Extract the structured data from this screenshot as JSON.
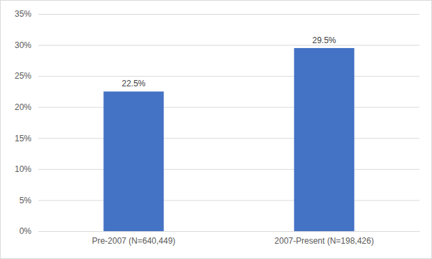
{
  "chart_data": {
    "type": "bar",
    "categories": [
      "Pre-2007 (N=640,449)",
      "2007-Present (N=198,426)"
    ],
    "values": [
      22.5,
      29.5
    ],
    "value_labels": [
      "22.5%",
      "29.5%"
    ],
    "color": "#4472c4",
    "ylim": [
      0,
      35
    ],
    "yticks": [
      {
        "value": 0,
        "label": "0%"
      },
      {
        "value": 5,
        "label": "5%"
      },
      {
        "value": 10,
        "label": "10%"
      },
      {
        "value": 15,
        "label": "15%"
      },
      {
        "value": 20,
        "label": "20%"
      },
      {
        "value": 25,
        "label": "25%"
      },
      {
        "value": 30,
        "label": "30%"
      },
      {
        "value": 35,
        "label": "35%"
      }
    ],
    "grid": true,
    "data_labels": true
  }
}
